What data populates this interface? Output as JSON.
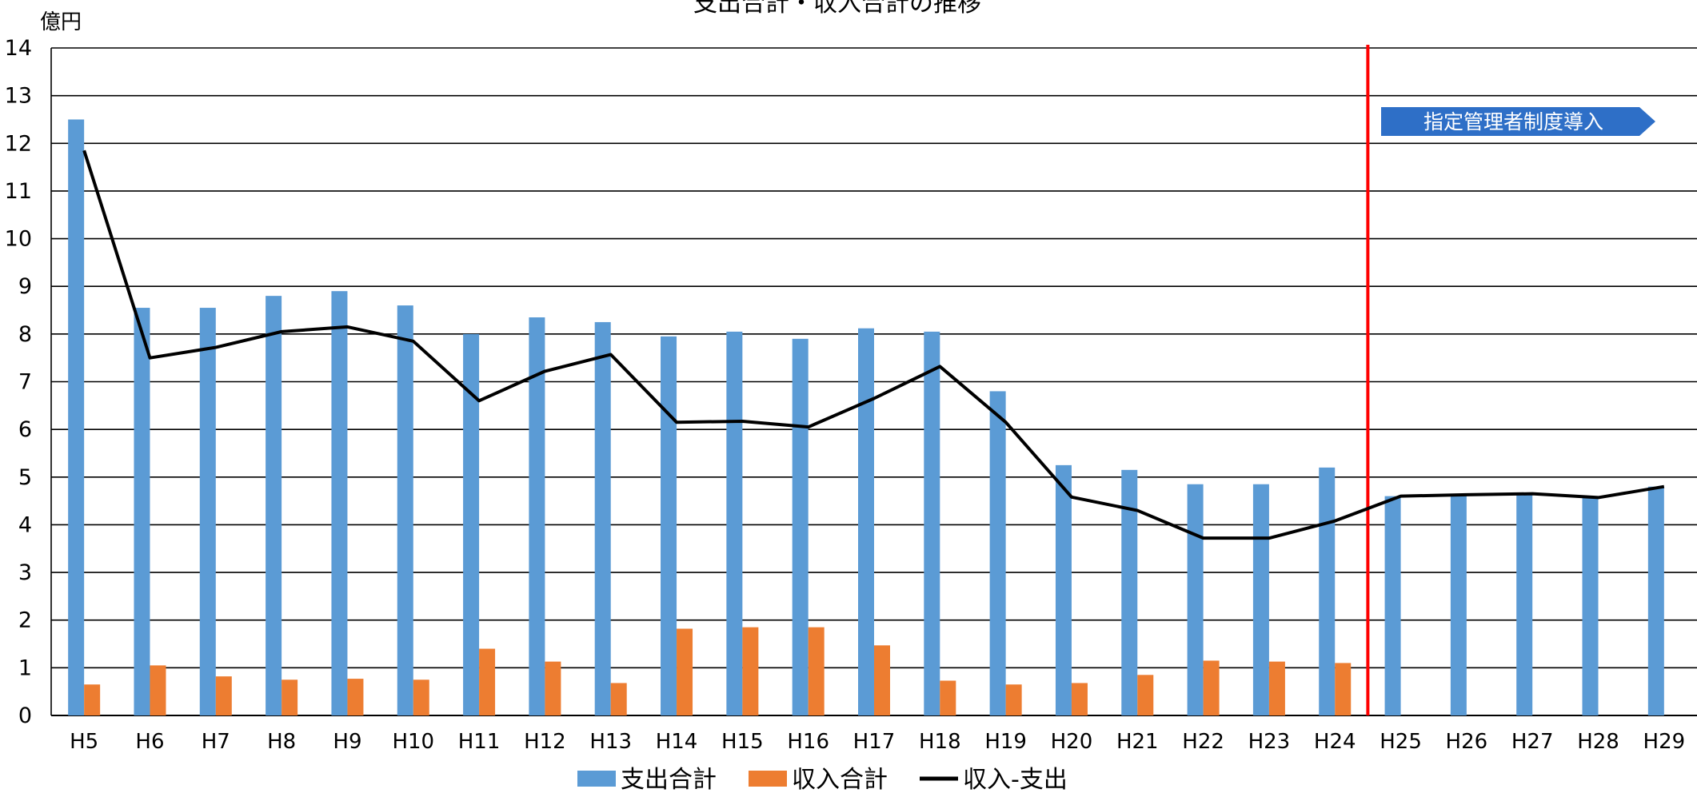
{
  "chart_data": {
    "type": "bar",
    "title": "支出合計・収入合計の推移",
    "unit_label": "億円",
    "ylim": [
      0,
      14
    ],
    "yticks": [
      0,
      1,
      2,
      3,
      4,
      5,
      6,
      7,
      8,
      9,
      10,
      11,
      12,
      13,
      14
    ],
    "grid": true,
    "legend_position": "bottom",
    "categories": [
      "H5",
      "H6",
      "H7",
      "H8",
      "H9",
      "H10",
      "H11",
      "H12",
      "H13",
      "H14",
      "H15",
      "H16",
      "H17",
      "H18",
      "H19",
      "H20",
      "H21",
      "H22",
      "H23",
      "H24",
      "H25",
      "H26",
      "H27",
      "H28",
      "H29"
    ],
    "series": [
      {
        "name": "支出合計",
        "kind": "bar",
        "color": "#5b9bd5",
        "values": [
          12.5,
          8.55,
          8.55,
          8.8,
          8.9,
          8.6,
          8.0,
          8.35,
          8.25,
          7.95,
          8.05,
          7.9,
          8.12,
          8.05,
          6.8,
          5.25,
          5.15,
          4.85,
          4.85,
          5.2,
          4.6,
          4.65,
          4.65,
          4.6,
          4.8
        ]
      },
      {
        "name": "収入合計",
        "kind": "bar",
        "color": "#ed7d31",
        "values": [
          0.65,
          1.05,
          0.82,
          0.75,
          0.77,
          0.75,
          1.4,
          1.13,
          0.68,
          1.82,
          1.85,
          1.85,
          1.47,
          0.73,
          0.65,
          0.68,
          0.85,
          1.15,
          1.13,
          1.1,
          null,
          null,
          null,
          null,
          null
        ]
      },
      {
        "name": "収入-支出",
        "kind": "line",
        "color": "#000000",
        "values": [
          11.85,
          7.5,
          7.72,
          8.05,
          8.15,
          7.85,
          6.6,
          7.22,
          7.57,
          6.15,
          6.17,
          6.05,
          6.65,
          7.32,
          6.15,
          4.58,
          4.3,
          3.72,
          3.72,
          4.08,
          4.6,
          4.63,
          4.65,
          4.57,
          4.8
        ]
      }
    ],
    "annotation": {
      "label": "指定管理者制度導入",
      "marker_between": [
        "H24",
        "H25"
      ],
      "line_color": "#ff0000",
      "box_color": "#2e6fc7"
    }
  }
}
